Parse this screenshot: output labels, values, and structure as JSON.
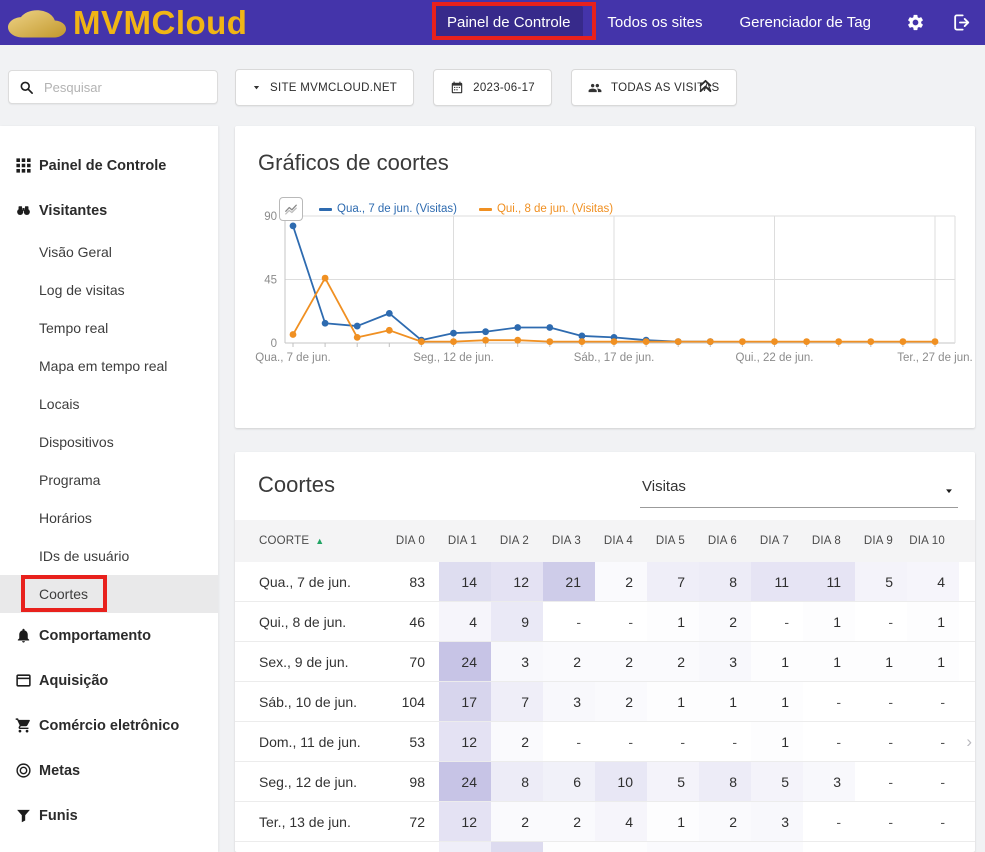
{
  "topbar": {
    "brand": "MVMCloud",
    "nav_items": [
      {
        "id": "painel-de-controle",
        "label": "Painel de Controle",
        "active": true
      },
      {
        "id": "todos-os-sites",
        "label": "Todos os sites",
        "active": false
      },
      {
        "id": "gerenciador-de-tag",
        "label": "Gerenciador de Tag",
        "active": false
      }
    ]
  },
  "toolbar": {
    "search_placeholder": "Pesquisar",
    "buttons": [
      {
        "id": "site-selector",
        "label": "SITE MVMCLOUD.NET",
        "icon": "caret-down"
      },
      {
        "id": "date-picker",
        "label": "2023-06-17",
        "icon": "calendar"
      },
      {
        "id": "segment-selector",
        "label": "TODAS AS VISITAS",
        "icon": "users"
      }
    ]
  },
  "sidebar": {
    "items": [
      {
        "id": "painel-de-controle",
        "label": "Painel de Controle",
        "icon": "grid",
        "level": 0,
        "active": false
      },
      {
        "id": "visitantes",
        "label": "Visitantes",
        "icon": "binoculars",
        "level": 0,
        "active": false
      },
      {
        "id": "visao-geral",
        "label": "Visão Geral",
        "level": 1,
        "active": false
      },
      {
        "id": "log-de-visitas",
        "label": "Log de visitas",
        "level": 1,
        "active": false
      },
      {
        "id": "tempo-real",
        "label": "Tempo real",
        "level": 1,
        "active": false
      },
      {
        "id": "mapa-em-tempo-real",
        "label": "Mapa em tempo real",
        "level": 1,
        "active": false
      },
      {
        "id": "locais",
        "label": "Locais",
        "level": 1,
        "active": false
      },
      {
        "id": "dispositivos",
        "label": "Dispositivos",
        "level": 1,
        "active": false
      },
      {
        "id": "programa",
        "label": "Programa",
        "level": 1,
        "active": false
      },
      {
        "id": "horarios",
        "label": "Horários",
        "level": 1,
        "active": false
      },
      {
        "id": "ids-de-usuario",
        "label": "IDs de usuário",
        "level": 1,
        "active": false
      },
      {
        "id": "coortes",
        "label": "Coortes",
        "level": 1,
        "active": true
      },
      {
        "id": "comportamento",
        "label": "Comportamento",
        "icon": "bell",
        "level": 0,
        "active": false
      },
      {
        "id": "aquisicao",
        "label": "Aquisição",
        "icon": "browser",
        "level": 0,
        "active": false
      },
      {
        "id": "comercio-eletronico",
        "label": "Comércio eletrônico",
        "icon": "cart",
        "level": 0,
        "active": false
      },
      {
        "id": "metas",
        "label": "Metas",
        "icon": "target",
        "level": 0,
        "active": false
      },
      {
        "id": "funis",
        "label": "Funis",
        "icon": "funnel",
        "level": 0,
        "active": false
      }
    ]
  },
  "chart_card": {
    "title": "Gráficos de coortes"
  },
  "chart_data": {
    "type": "line",
    "title": "Gráficos de coortes",
    "ylim": [
      0,
      90
    ],
    "yticks": [
      0,
      45,
      90
    ],
    "n_points": 21,
    "grid": true,
    "legend_position": "top",
    "x_labels": [
      "Qua., 7 de jun.",
      "Seg., 12 de jun.",
      "Sáb., 17 de jun.",
      "Qui., 22 de jun.",
      "Ter., 27 de jun."
    ],
    "x_label_positions": [
      0,
      5,
      10,
      15,
      20
    ],
    "series": [
      {
        "name": "Qua., 7 de jun. (Visitas)",
        "color": "#2e6bb0",
        "values": [
          83,
          14,
          12,
          21,
          2,
          7,
          8,
          11,
          11,
          5,
          4,
          2,
          1,
          1,
          null,
          null,
          null,
          null,
          null,
          null,
          null
        ]
      },
      {
        "name": "Qui., 8 de jun. (Visitas)",
        "color": "#f09022",
        "values": [
          6,
          46,
          4,
          9,
          1,
          1,
          2,
          2,
          1,
          1,
          1,
          1,
          1,
          1,
          1,
          1,
          1,
          1,
          1,
          1,
          1
        ]
      }
    ]
  },
  "table_card": {
    "title": "Coortes",
    "metric_select": {
      "value": "Visitas"
    },
    "columns": [
      "COORTE",
      "DIA 0",
      "DIA 1",
      "DIA 2",
      "DIA 3",
      "DIA 4",
      "DIA 5",
      "DIA 6",
      "DIA 7",
      "DIA 8",
      "DIA 9",
      "DIA 10"
    ],
    "sort": {
      "column": "COORTE",
      "direction": "asc"
    },
    "rows": [
      {
        "label": "Qua., 7 de jun.",
        "day0": 83,
        "days": [
          14,
          12,
          21,
          2,
          7,
          8,
          11,
          11,
          5,
          4
        ]
      },
      {
        "label": "Qui., 8 de jun.",
        "day0": 46,
        "days": [
          4,
          9,
          "-",
          "-",
          1,
          2,
          "-",
          1,
          "-",
          1
        ]
      },
      {
        "label": "Sex., 9 de jun.",
        "day0": 70,
        "days": [
          24,
          3,
          2,
          2,
          2,
          3,
          1,
          1,
          1,
          1
        ]
      },
      {
        "label": "Sáb., 10 de jun.",
        "day0": 104,
        "days": [
          17,
          7,
          3,
          2,
          1,
          1,
          1,
          "-",
          "-",
          "-"
        ]
      },
      {
        "label": "Dom., 11 de jun.",
        "day0": 53,
        "days": [
          12,
          2,
          "-",
          "-",
          "-",
          "-",
          1,
          "-",
          "-",
          "-"
        ]
      },
      {
        "label": "Seg., 12 de jun.",
        "day0": 98,
        "days": [
          24,
          8,
          6,
          10,
          5,
          8,
          5,
          3,
          "-",
          "-"
        ]
      },
      {
        "label": "Ter., 13 de jun.",
        "day0": 72,
        "days": [
          12,
          2,
          2,
          4,
          1,
          2,
          3,
          "-",
          "-",
          "-"
        ]
      }
    ],
    "partial_row_shades": [
      7,
      15,
      1,
      1,
      2,
      2,
      2,
      0,
      0,
      0
    ],
    "scroll_hint": "›"
  },
  "colors": {
    "topbar_bg": "#4434aa",
    "brand_gold": "#f0b515",
    "annotation_red": "#e8211d",
    "series_blue": "#2e6bb0",
    "series_orange": "#f09022",
    "sort_green": "#21a464",
    "heatmap_base": "#6d65bd"
  }
}
